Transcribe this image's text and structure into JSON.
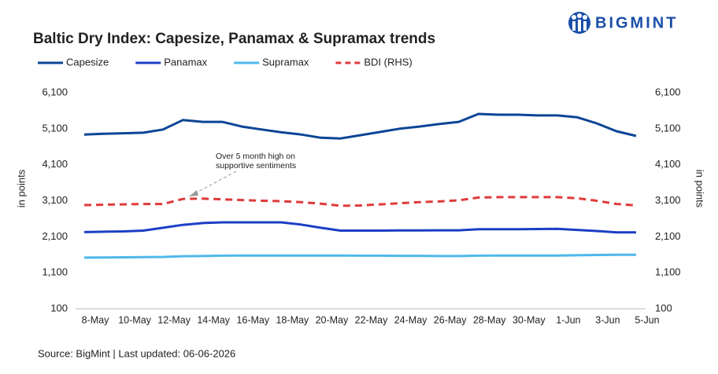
{
  "chart_data": {
    "type": "line",
    "title": "Baltic Dry Index: Capesize, Panamax & Supramax trends",
    "logo": "BIGMINT",
    "source": "Source: BigMint | Last updated: 06-06-2026",
    "y_label": "in points",
    "y2_label": "in points",
    "annotation": [
      "Over 5 month high on",
      "supportive sentiments"
    ],
    "categories": [
      "8-May",
      null,
      "10-May",
      null,
      "12-May",
      null,
      "14-May",
      null,
      "16-May",
      null,
      "18-May",
      null,
      "20-May",
      null,
      "22-May",
      null,
      "24-May",
      null,
      "26-May",
      null,
      "28-May",
      null,
      "30-May",
      null,
      "1-Jun",
      null,
      "3-Jun",
      null,
      "5-Jun"
    ],
    "ylim": [
      100,
      6100
    ],
    "yticks": [
      {
        "value": 100,
        "label": "100"
      },
      {
        "value": 1100,
        "label": "1,100"
      },
      {
        "value": 2100,
        "label": "2,100"
      },
      {
        "value": 3100,
        "label": "3,100"
      },
      {
        "value": 4100,
        "label": "4,100"
      },
      {
        "value": 5100,
        "label": "5,100"
      },
      {
        "value": 6100,
        "label": "6,100"
      }
    ],
    "y2lim": [
      100,
      6100
    ],
    "y2ticks": [
      {
        "value": 100,
        "label": "100"
      },
      {
        "value": 1100,
        "label": "1,100"
      },
      {
        "value": 2100,
        "label": "2,100"
      },
      {
        "value": 3100,
        "label": "3,100"
      },
      {
        "value": 4100,
        "label": "4,100"
      },
      {
        "value": 5100,
        "label": "5,100"
      },
      {
        "value": 6100,
        "label": "6,100"
      }
    ],
    "series": [
      {
        "name": "Capesize",
        "color": "#0b4595",
        "dash": false,
        "values": [
          4940,
          4960,
          4975,
          4990,
          5080,
          5340,
          5290,
          5290,
          5160,
          5080,
          5000,
          4940,
          4850,
          4830,
          4920,
          5010,
          5100,
          5160,
          5230,
          5290,
          5510,
          5490,
          5490,
          5470,
          5470,
          5420,
          5250,
          5030,
          4900
        ]
      },
      {
        "name": "Panamax",
        "color": "#1b3fc4",
        "dash": false,
        "values": [
          2230,
          2240,
          2250,
          2270,
          2350,
          2430,
          2480,
          2500,
          2500,
          2500,
          2500,
          2440,
          2350,
          2270,
          2270,
          2270,
          2275,
          2275,
          2280,
          2280,
          2310,
          2310,
          2310,
          2315,
          2320,
          2290,
          2260,
          2220,
          2220
        ]
      },
      {
        "name": "Supramax",
        "color": "#4fb8ea",
        "dash": false,
        "values": [
          1520,
          1525,
          1530,
          1535,
          1540,
          1560,
          1565,
          1575,
          1580,
          1580,
          1580,
          1580,
          1580,
          1580,
          1575,
          1575,
          1570,
          1570,
          1565,
          1565,
          1575,
          1580,
          1580,
          1580,
          1580,
          1585,
          1595,
          1600,
          1600
        ]
      },
      {
        "name": "BDI (RHS)",
        "color": "#e03a3a",
        "dash": true,
        "axis": "y2",
        "values": [
          2980,
          2990,
          3000,
          3010,
          3010,
          3150,
          3160,
          3140,
          3120,
          3100,
          3090,
          3060,
          3020,
          2960,
          2970,
          3000,
          3030,
          3060,
          3080,
          3110,
          3190,
          3200,
          3200,
          3200,
          3200,
          3170,
          3100,
          3010,
          2970
        ]
      }
    ]
  }
}
